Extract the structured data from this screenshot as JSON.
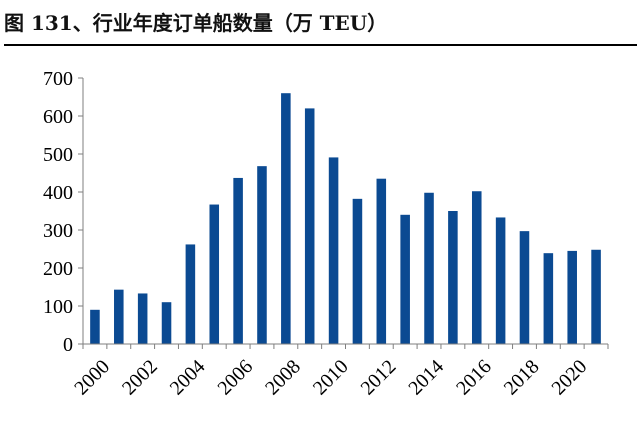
{
  "title": "图 131、行业年度订单船数量（万 TEU）",
  "colors": {
    "bar": "#0b4a92",
    "axis": "#7f7f7f"
  },
  "chart_data": {
    "type": "bar",
    "title": "图 131、行业年度订单船数量（万 TEU）",
    "xlabel": "",
    "ylabel": "",
    "categories": [
      "2000",
      "2001",
      "2002",
      "2003",
      "2004",
      "2005",
      "2006",
      "2007",
      "2008",
      "2009",
      "2010",
      "2011",
      "2012",
      "2013",
      "2014",
      "2015",
      "2016",
      "2017",
      "2018",
      "2019",
      "2020",
      "2021"
    ],
    "values": [
      90,
      143,
      133,
      110,
      262,
      367,
      437,
      468,
      660,
      620,
      491,
      382,
      435,
      340,
      398,
      350,
      402,
      333,
      297,
      239,
      245,
      248
    ],
    "x_tick_labels": [
      "2000",
      "2002",
      "2004",
      "2006",
      "2008",
      "2010",
      "2012",
      "2014",
      "2016",
      "2018",
      "2020"
    ],
    "ylim": [
      0,
      700
    ],
    "yticks": [
      0,
      100,
      200,
      300,
      400,
      500,
      600,
      700
    ],
    "grid": false,
    "legend": "none"
  }
}
